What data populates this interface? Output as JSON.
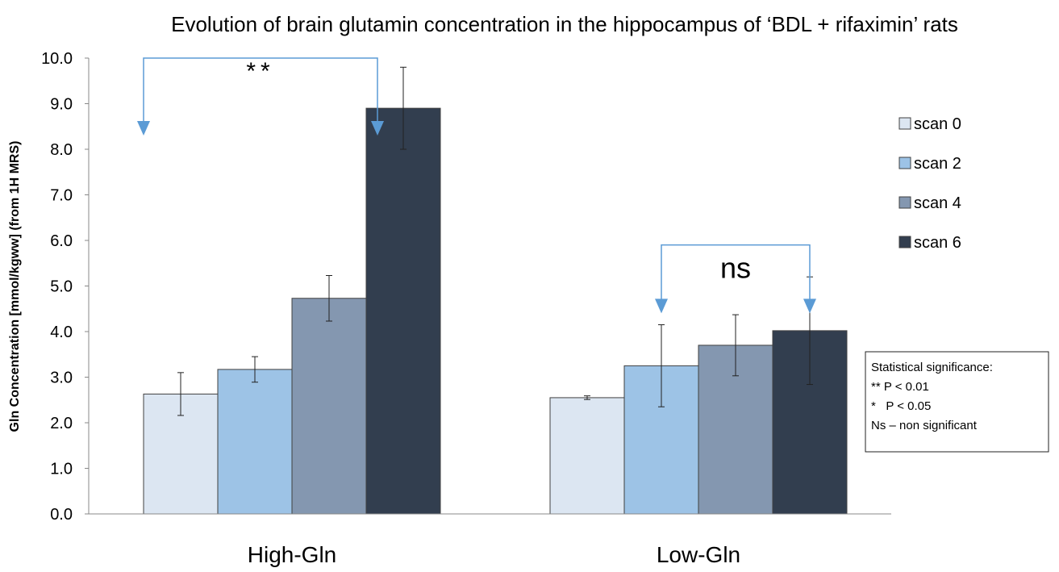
{
  "chart_data": {
    "type": "bar",
    "title": "Evolution of brain glutamin concentration in the hippocampus of ‘BDL + rifaximin’ rats",
    "xlabel": "",
    "ylabel": "Gln Concentration  [mmol/kgww] (from 1H MRS)",
    "ylim": [
      0,
      10
    ],
    "yticks": [
      "0.0",
      "1.0",
      "2.0",
      "3.0",
      "4.0",
      "5.0",
      "6.0",
      "7.0",
      "8.0",
      "9.0",
      "10.0"
    ],
    "categories": [
      "High-Gln",
      "Low-Gln"
    ],
    "series": [
      {
        "name": "scan 0",
        "color": "#DCE6F2",
        "values": [
          2.63,
          2.55
        ],
        "errors": [
          0.47,
          0.04
        ]
      },
      {
        "name": "scan 2",
        "color": "#9DC3E6",
        "values": [
          3.17,
          3.25
        ],
        "errors": [
          0.28,
          0.9
        ]
      },
      {
        "name": "scan 4",
        "color": "#8497B0",
        "values": [
          4.73,
          3.7
        ],
        "errors": [
          0.5,
          0.67
        ]
      },
      {
        "name": "scan 6",
        "color": "#323E4F",
        "values": [
          8.9,
          4.02
        ],
        "errors": [
          0.9,
          1.18
        ]
      }
    ],
    "legend_position": "right",
    "significance": [
      {
        "category": "High-Gln",
        "from_series": 0,
        "to_series": 3,
        "bracket_level": 10.0,
        "label": "**"
      },
      {
        "category": "Low-Gln",
        "from_series": 1,
        "to_series": 3,
        "bracket_level": 5.9,
        "label": "ns"
      }
    ],
    "annotation_color": "#5B9BD5",
    "stat_box": {
      "title": "Statistical significance:",
      "lines": [
        "** P < 0.01",
        "*   P < 0.05",
        "Ns – non significant"
      ]
    }
  }
}
